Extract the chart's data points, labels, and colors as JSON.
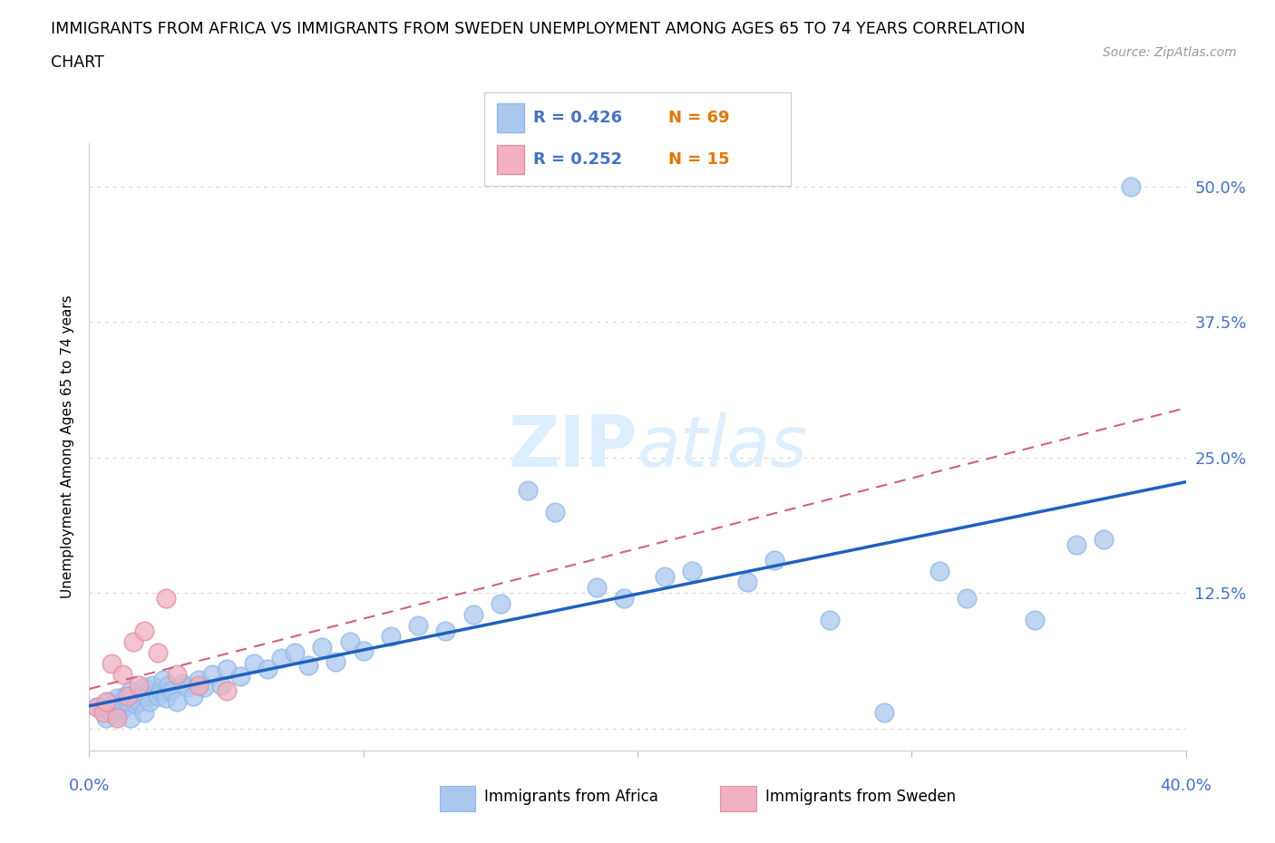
{
  "title_line1": "IMMIGRANTS FROM AFRICA VS IMMIGRANTS FROM SWEDEN UNEMPLOYMENT AMONG AGES 65 TO 74 YEARS CORRELATION",
  "title_line2": "CHART",
  "source_text": "Source: ZipAtlas.com",
  "ylabel": "Unemployment Among Ages 65 to 74 years",
  "xlim": [
    0.0,
    0.4
  ],
  "ylim": [
    -0.02,
    0.54
  ],
  "xticks": [
    0.0,
    0.1,
    0.2,
    0.3,
    0.4
  ],
  "yticks": [
    0.0,
    0.125,
    0.25,
    0.375,
    0.5
  ],
  "yticklabels": [
    "",
    "12.5%",
    "25.0%",
    "37.5%",
    "50.0%"
  ],
  "africa_R": 0.426,
  "africa_N": 69,
  "sweden_R": 0.252,
  "sweden_N": 15,
  "africa_color": "#aac8ee",
  "africa_edge_color": "#90b8e8",
  "africa_line_color": "#2060c0",
  "sweden_color": "#f0b0c0",
  "sweden_edge_color": "#e090a8",
  "sweden_line_color": "#d06080",
  "label_color": "#4472c4",
  "n_label_color": "#e07800",
  "watermark": "ZIPatlas",
  "watermark_color": "#ddeeff",
  "africa_x": [
    0.003,
    0.005,
    0.006,
    0.007,
    0.008,
    0.009,
    0.01,
    0.01,
    0.011,
    0.012,
    0.013,
    0.014,
    0.015,
    0.015,
    0.016,
    0.017,
    0.018,
    0.019,
    0.02,
    0.02,
    0.021,
    0.022,
    0.023,
    0.025,
    0.026,
    0.027,
    0.028,
    0.029,
    0.03,
    0.032,
    0.034,
    0.036,
    0.038,
    0.04,
    0.042,
    0.045,
    0.048,
    0.05,
    0.055,
    0.06,
    0.065,
    0.07,
    0.075,
    0.08,
    0.085,
    0.09,
    0.095,
    0.1,
    0.11,
    0.12,
    0.13,
    0.14,
    0.15,
    0.16,
    0.17,
    0.185,
    0.195,
    0.21,
    0.22,
    0.24,
    0.25,
    0.27,
    0.29,
    0.31,
    0.32,
    0.345,
    0.36,
    0.37,
    0.38
  ],
  "africa_y": [
    0.02,
    0.018,
    0.01,
    0.025,
    0.015,
    0.02,
    0.012,
    0.028,
    0.022,
    0.018,
    0.03,
    0.025,
    0.01,
    0.035,
    0.028,
    0.022,
    0.025,
    0.032,
    0.015,
    0.038,
    0.03,
    0.025,
    0.04,
    0.03,
    0.035,
    0.045,
    0.028,
    0.04,
    0.035,
    0.025,
    0.042,
    0.038,
    0.03,
    0.045,
    0.038,
    0.05,
    0.04,
    0.055,
    0.048,
    0.06,
    0.055,
    0.065,
    0.07,
    0.058,
    0.075,
    0.062,
    0.08,
    0.072,
    0.085,
    0.095,
    0.09,
    0.105,
    0.115,
    0.22,
    0.2,
    0.13,
    0.12,
    0.14,
    0.145,
    0.135,
    0.155,
    0.1,
    0.015,
    0.145,
    0.12,
    0.1,
    0.17,
    0.175,
    0.5
  ],
  "sweden_x": [
    0.003,
    0.005,
    0.006,
    0.008,
    0.01,
    0.012,
    0.014,
    0.016,
    0.018,
    0.02,
    0.025,
    0.028,
    0.032,
    0.04,
    0.05
  ],
  "sweden_y": [
    0.02,
    0.015,
    0.025,
    0.06,
    0.01,
    0.05,
    0.03,
    0.08,
    0.04,
    0.09,
    0.07,
    0.12,
    0.05,
    0.04,
    0.035
  ],
  "background_color": "#ffffff",
  "grid_color": "#d8d8d8"
}
